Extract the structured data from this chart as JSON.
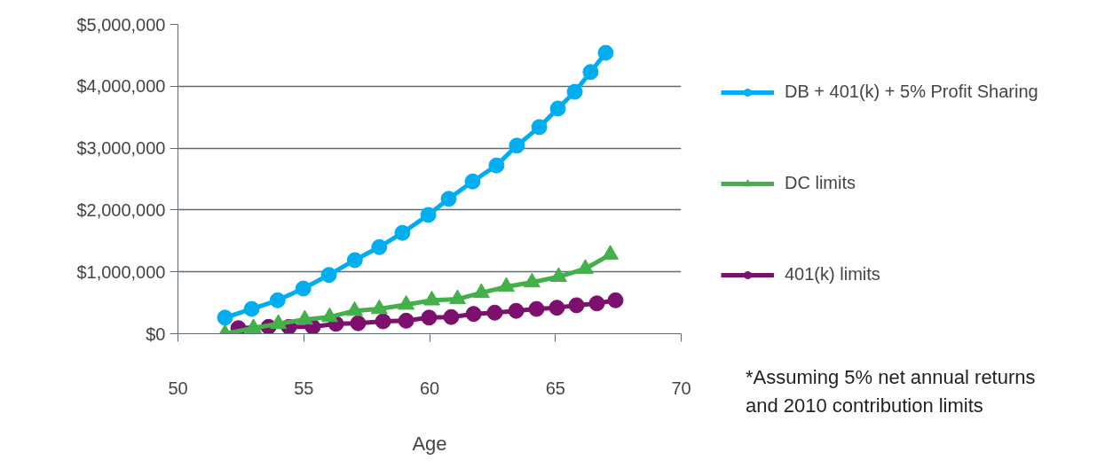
{
  "chart_data": {
    "type": "line",
    "xlabel": "Age",
    "xlim": [
      50,
      70
    ],
    "xticks": [
      50,
      55,
      60,
      65,
      70
    ],
    "ylim": [
      0,
      5000000
    ],
    "yticks": [
      {
        "value": 0,
        "label": "$0"
      },
      {
        "value": 1000000,
        "label": "$1,000,000"
      },
      {
        "value": 2000000,
        "label": "$2,000,000"
      },
      {
        "value": 3000000,
        "label": "$3,000,000"
      },
      {
        "value": 4000000,
        "label": "$4,000,000"
      },
      {
        "value": 5000000,
        "label": "$5,000,000"
      }
    ],
    "grid": "y",
    "legend": "right",
    "series": [
      {
        "name": "DB + 401(k) + 5% Profit Sharing",
        "color": "#00aeef",
        "marker": "circle",
        "x": [
          51.87,
          52.93,
          53.96,
          54.98,
          56.0,
          57.03,
          58.0,
          58.92,
          59.95,
          60.76,
          61.71,
          62.66,
          63.47,
          64.36,
          65.1,
          65.77,
          66.4,
          67.0
        ],
        "values": [
          260000,
          400000,
          540000,
          730000,
          950000,
          1190000,
          1400000,
          1630000,
          1920000,
          2180000,
          2460000,
          2720000,
          3040000,
          3340000,
          3640000,
          3910000,
          4230000,
          4540000
        ]
      },
      {
        "name": "DC limits",
        "color": "#43b049",
        "marker": "triangle",
        "x": [
          51.87,
          53.0,
          53.99,
          55.04,
          56.03,
          57.02,
          58.0,
          59.07,
          60.09,
          61.11,
          62.06,
          63.05,
          64.07,
          65.13,
          66.19,
          67.18
        ],
        "values": [
          0,
          90000,
          160000,
          230000,
          270000,
          370000,
          400000,
          470000,
          540000,
          560000,
          660000,
          760000,
          830000,
          920000,
          1050000,
          1280000
        ]
      },
      {
        "name": "401(k) limits",
        "color": "#7d106e",
        "marker": "circle",
        "x": [
          52.4,
          53.6,
          54.41,
          55.36,
          56.28,
          57.16,
          58.15,
          59.07,
          59.98,
          60.86,
          61.75,
          62.59,
          63.44,
          64.25,
          65.06,
          65.84,
          66.65,
          67.39
        ],
        "values": [
          90000,
          110000,
          110000,
          110000,
          160000,
          170000,
          200000,
          210000,
          260000,
          270000,
          320000,
          340000,
          370000,
          400000,
          420000,
          460000,
          490000,
          540000
        ]
      }
    ],
    "annotations": [
      "*Assuming 5% net annual returns and 2010 contribution limits"
    ]
  }
}
